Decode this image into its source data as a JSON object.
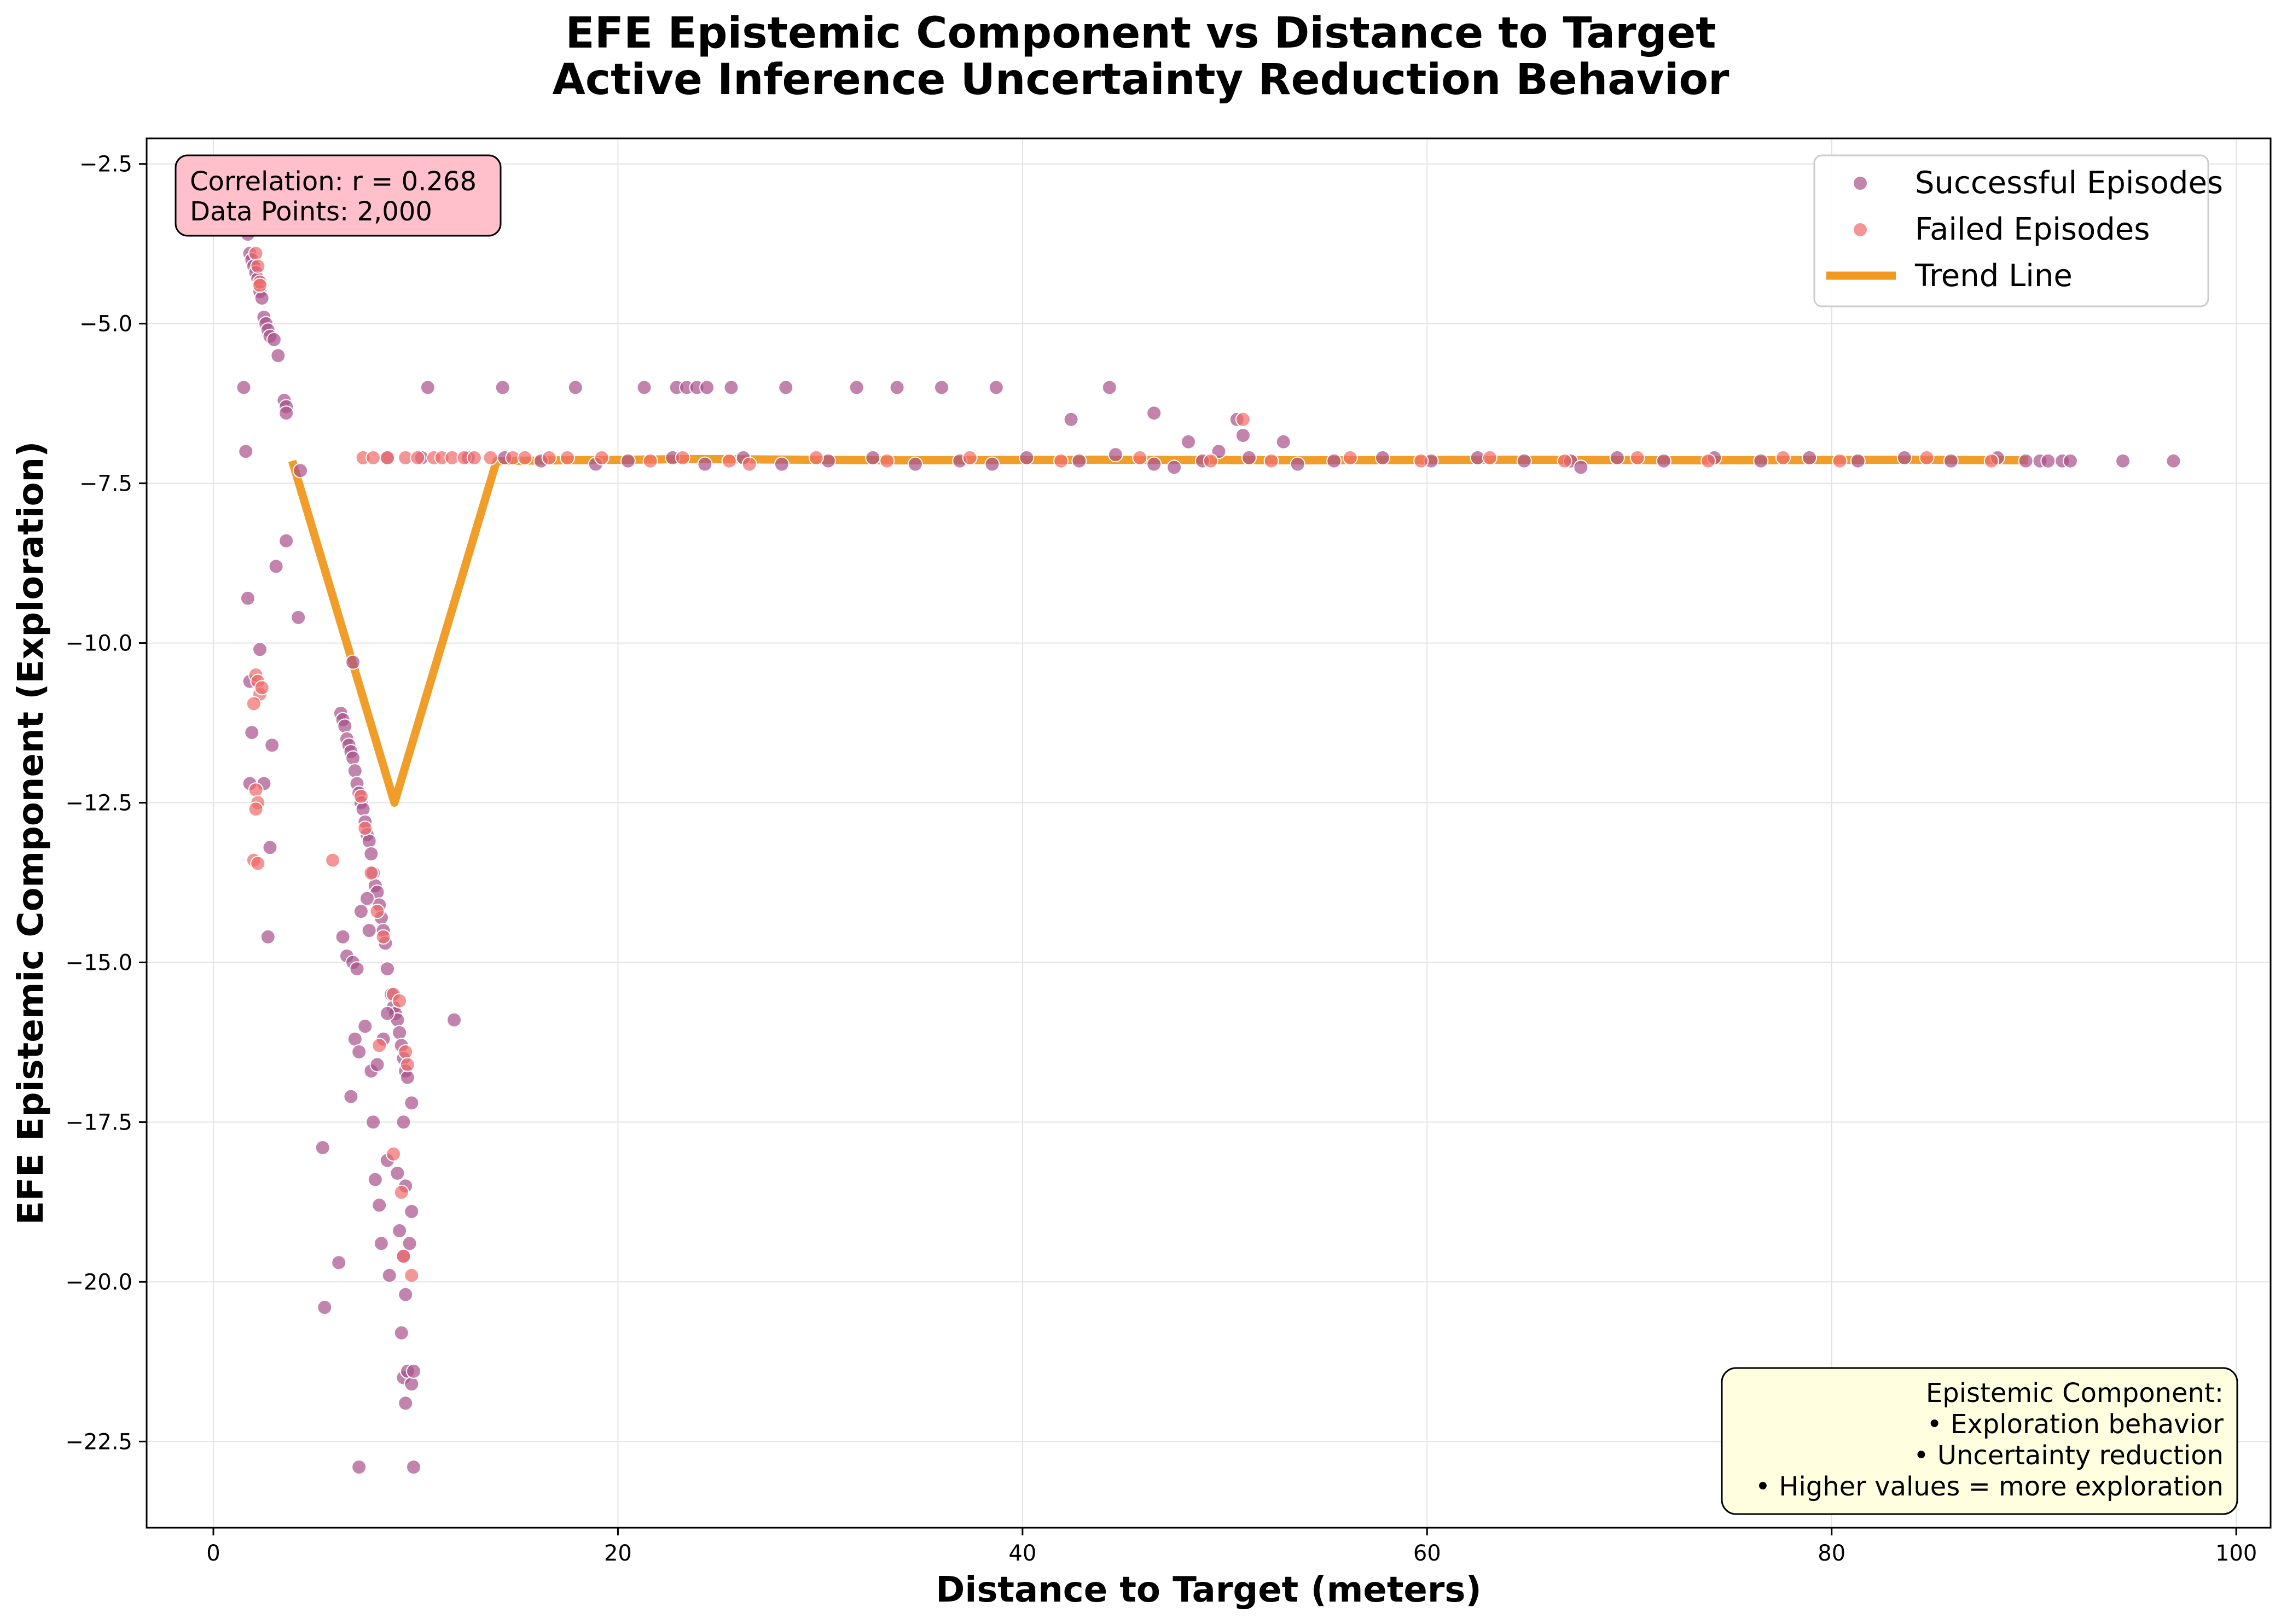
{
  "chart_data": {
    "type": "scatter",
    "title": "EFE Epistemic Component vs Distance to Target",
    "subtitle": "Active Inference Uncertainty Reduction Behavior",
    "xlabel": "Distance to Target (meters)",
    "ylabel": "EFE Epistemic Component (Exploration)",
    "xlim": [
      -3.3,
      101.7
    ],
    "ylim": [
      -23.85,
      -2.1
    ],
    "xticks": [
      0,
      20,
      40,
      60,
      80,
      100
    ],
    "yticks": [
      -2.5,
      -5.0,
      -7.5,
      -10.0,
      -12.5,
      -15.0,
      -17.5,
      -20.0,
      -22.5
    ],
    "xtick_labels": [
      "0",
      "20",
      "40",
      "60",
      "80",
      "100"
    ],
    "ytick_labels": [
      "−2.5",
      "−5.0",
      "−7.5",
      "−10.0",
      "−12.5",
      "−15.0",
      "−17.5",
      "−20.0",
      "−22.5"
    ],
    "grid": true,
    "legend_position": "top-right",
    "colors": {
      "successful": "#a8508a",
      "failed": "#ef6a6a",
      "trend": "#f0981f",
      "correlation_box": "#ffc0cb",
      "info_box": "#ffffe0"
    },
    "series": [
      {
        "name": "Successful Episodes",
        "points": [
          [
            1.6,
            -3.3
          ],
          [
            1.7,
            -3.6
          ],
          [
            1.8,
            -3.9
          ],
          [
            1.9,
            -4.0
          ],
          [
            2.0,
            -4.1
          ],
          [
            2.1,
            -4.2
          ],
          [
            2.2,
            -4.3
          ],
          [
            2.3,
            -4.5
          ],
          [
            2.4,
            -4.6
          ],
          [
            2.5,
            -4.9
          ],
          [
            2.6,
            -5.0
          ],
          [
            2.7,
            -5.1
          ],
          [
            2.8,
            -5.2
          ],
          [
            3.0,
            -5.25
          ],
          [
            3.2,
            -5.5
          ],
          [
            3.5,
            -6.2
          ],
          [
            3.6,
            -6.3
          ],
          [
            3.6,
            -6.4
          ],
          [
            1.5,
            -6.0
          ],
          [
            1.6,
            -7.0
          ],
          [
            1.7,
            -9.3
          ],
          [
            1.8,
            -10.6
          ],
          [
            1.9,
            -11.4
          ],
          [
            1.8,
            -12.2
          ],
          [
            2.3,
            -10.1
          ],
          [
            2.5,
            -12.2
          ],
          [
            2.7,
            -14.6
          ],
          [
            2.8,
            -13.2
          ],
          [
            2.9,
            -11.6
          ],
          [
            3.1,
            -8.8
          ],
          [
            3.6,
            -8.4
          ],
          [
            4.2,
            -9.6
          ],
          [
            4.3,
            -7.3
          ],
          [
            6.3,
            -11.1
          ],
          [
            6.4,
            -11.2
          ],
          [
            6.5,
            -11.3
          ],
          [
            6.6,
            -11.5
          ],
          [
            6.7,
            -11.6
          ],
          [
            6.8,
            -11.7
          ],
          [
            6.9,
            -11.8
          ],
          [
            7.0,
            -12.0
          ],
          [
            7.1,
            -12.2
          ],
          [
            7.2,
            -12.35
          ],
          [
            7.3,
            -12.5
          ],
          [
            7.4,
            -12.6
          ],
          [
            7.5,
            -12.8
          ],
          [
            7.6,
            -13.0
          ],
          [
            7.7,
            -13.1
          ],
          [
            7.8,
            -13.3
          ],
          [
            7.9,
            -13.6
          ],
          [
            8.0,
            -13.8
          ],
          [
            8.1,
            -13.9
          ],
          [
            8.2,
            -14.1
          ],
          [
            8.3,
            -14.3
          ],
          [
            8.4,
            -14.5
          ],
          [
            8.5,
            -14.7
          ],
          [
            8.6,
            -15.1
          ],
          [
            8.8,
            -15.5
          ],
          [
            8.9,
            -15.7
          ],
          [
            9.0,
            -15.8
          ],
          [
            9.1,
            -15.9
          ],
          [
            9.2,
            -16.1
          ],
          [
            9.3,
            -16.3
          ],
          [
            9.4,
            -16.5
          ],
          [
            9.5,
            -16.7
          ],
          [
            9.6,
            -16.8
          ],
          [
            9.8,
            -17.2
          ],
          [
            6.9,
            -10.3
          ],
          [
            6.4,
            -14.6
          ],
          [
            6.6,
            -14.9
          ],
          [
            6.9,
            -15.0
          ],
          [
            7.1,
            -15.1
          ],
          [
            7.3,
            -14.2
          ],
          [
            7.6,
            -14.0
          ],
          [
            7.7,
            -14.5
          ],
          [
            7.0,
            -16.2
          ],
          [
            7.2,
            -16.4
          ],
          [
            7.5,
            -16.0
          ],
          [
            7.8,
            -16.7
          ],
          [
            8.1,
            -16.6
          ],
          [
            8.4,
            -16.2
          ],
          [
            8.6,
            -15.8
          ],
          [
            6.8,
            -17.1
          ],
          [
            7.9,
            -17.5
          ],
          [
            9.4,
            -17.5
          ],
          [
            5.4,
            -17.9
          ],
          [
            8.0,
            -18.4
          ],
          [
            8.2,
            -18.8
          ],
          [
            8.6,
            -18.1
          ],
          [
            9.1,
            -18.3
          ],
          [
            9.5,
            -18.5
          ],
          [
            9.8,
            -18.9
          ],
          [
            8.3,
            -19.4
          ],
          [
            8.7,
            -19.9
          ],
          [
            9.2,
            -19.2
          ],
          [
            9.4,
            -19.6
          ],
          [
            9.7,
            -19.4
          ],
          [
            9.5,
            -20.2
          ],
          [
            6.2,
            -19.7
          ],
          [
            5.5,
            -20.4
          ],
          [
            9.3,
            -20.8
          ],
          [
            9.4,
            -21.5
          ],
          [
            9.6,
            -21.4
          ],
          [
            9.8,
            -21.6
          ],
          [
            9.5,
            -21.9
          ],
          [
            7.2,
            -22.9
          ],
          [
            9.9,
            -22.9
          ],
          [
            11.9,
            -15.9
          ],
          [
            9.9,
            -21.4
          ],
          [
            10.6,
            -6.0
          ],
          [
            14.3,
            -6.0
          ],
          [
            17.9,
            -6.0
          ],
          [
            21.3,
            -6.0
          ],
          [
            22.9,
            -6.0
          ],
          [
            23.4,
            -6.0
          ],
          [
            23.9,
            -6.0
          ],
          [
            24.4,
            -6.0
          ],
          [
            25.6,
            -6.0
          ],
          [
            28.3,
            -6.0
          ],
          [
            31.8,
            -6.0
          ],
          [
            33.8,
            -6.0
          ],
          [
            36.0,
            -6.0
          ],
          [
            38.7,
            -6.0
          ],
          [
            44.3,
            -6.0
          ],
          [
            42.4,
            -6.5
          ],
          [
            46.5,
            -6.4
          ],
          [
            48.2,
            -6.85
          ],
          [
            49.7,
            -7.0
          ],
          [
            50.6,
            -6.5
          ],
          [
            50.9,
            -6.75
          ],
          [
            52.9,
            -6.85
          ],
          [
            8.6,
            -7.1
          ],
          [
            10.3,
            -7.1
          ],
          [
            12.6,
            -7.1
          ],
          [
            14.4,
            -7.1
          ],
          [
            16.2,
            -7.15
          ],
          [
            18.9,
            -7.2
          ],
          [
            20.5,
            -7.15
          ],
          [
            22.7,
            -7.1
          ],
          [
            24.3,
            -7.2
          ],
          [
            26.2,
            -7.1
          ],
          [
            28.1,
            -7.2
          ],
          [
            30.4,
            -7.15
          ],
          [
            32.6,
            -7.1
          ],
          [
            34.7,
            -7.2
          ],
          [
            36.9,
            -7.15
          ],
          [
            38.5,
            -7.2
          ],
          [
            40.2,
            -7.1
          ],
          [
            42.8,
            -7.15
          ],
          [
            44.6,
            -7.05
          ],
          [
            46.5,
            -7.2
          ],
          [
            47.5,
            -7.25
          ],
          [
            48.9,
            -7.15
          ],
          [
            51.2,
            -7.1
          ],
          [
            53.6,
            -7.2
          ],
          [
            55.4,
            -7.15
          ],
          [
            57.8,
            -7.1
          ],
          [
            60.2,
            -7.15
          ],
          [
            62.5,
            -7.1
          ],
          [
            64.8,
            -7.15
          ],
          [
            67.1,
            -7.15
          ],
          [
            67.6,
            -7.25
          ],
          [
            69.4,
            -7.1
          ],
          [
            71.7,
            -7.15
          ],
          [
            74.2,
            -7.1
          ],
          [
            76.5,
            -7.15
          ],
          [
            78.9,
            -7.1
          ],
          [
            81.3,
            -7.15
          ],
          [
            83.6,
            -7.1
          ],
          [
            85.9,
            -7.15
          ],
          [
            88.2,
            -7.1
          ],
          [
            89.6,
            -7.15
          ],
          [
            90.3,
            -7.15
          ],
          [
            90.7,
            -7.15
          ],
          [
            91.4,
            -7.15
          ],
          [
            91.8,
            -7.15
          ],
          [
            94.4,
            -7.15
          ],
          [
            96.9,
            -7.15
          ]
        ]
      },
      {
        "name": "Failed Episodes",
        "points": [
          [
            2.1,
            -3.9
          ],
          [
            2.2,
            -4.1
          ],
          [
            2.3,
            -4.35
          ],
          [
            2.3,
            -4.4
          ],
          [
            2.1,
            -10.5
          ],
          [
            2.2,
            -10.6
          ],
          [
            2.3,
            -10.8
          ],
          [
            2.4,
            -10.7
          ],
          [
            2.0,
            -10.95
          ],
          [
            2.1,
            -12.3
          ],
          [
            2.2,
            -12.5
          ],
          [
            2.1,
            -12.6
          ],
          [
            2.0,
            -13.4
          ],
          [
            2.2,
            -13.45
          ],
          [
            5.9,
            -13.4
          ],
          [
            7.3,
            -12.4
          ],
          [
            7.5,
            -12.9
          ],
          [
            7.8,
            -13.6
          ],
          [
            8.1,
            -14.2
          ],
          [
            8.4,
            -14.6
          ],
          [
            8.2,
            -16.3
          ],
          [
            8.9,
            -15.5
          ],
          [
            9.2,
            -15.6
          ],
          [
            9.5,
            -16.4
          ],
          [
            9.6,
            -16.6
          ],
          [
            8.9,
            -18.0
          ],
          [
            9.3,
            -18.6
          ],
          [
            9.4,
            -19.6
          ],
          [
            9.8,
            -19.9
          ],
          [
            7.4,
            -7.1
          ],
          [
            7.9,
            -7.1
          ],
          [
            8.6,
            -7.1
          ],
          [
            9.5,
            -7.1
          ],
          [
            10.1,
            -7.1
          ],
          [
            10.9,
            -7.1
          ],
          [
            11.3,
            -7.1
          ],
          [
            11.8,
            -7.1
          ],
          [
            12.4,
            -7.1
          ],
          [
            12.9,
            -7.1
          ],
          [
            13.7,
            -7.1
          ],
          [
            14.8,
            -7.1
          ],
          [
            15.4,
            -7.1
          ],
          [
            16.6,
            -7.1
          ],
          [
            17.5,
            -7.1
          ],
          [
            19.2,
            -7.1
          ],
          [
            21.6,
            -7.15
          ],
          [
            23.2,
            -7.1
          ],
          [
            25.5,
            -7.15
          ],
          [
            26.5,
            -7.2
          ],
          [
            29.8,
            -7.1
          ],
          [
            33.3,
            -7.15
          ],
          [
            37.4,
            -7.1
          ],
          [
            41.9,
            -7.15
          ],
          [
            45.8,
            -7.1
          ],
          [
            49.3,
            -7.15
          ],
          [
            50.9,
            -6.5
          ],
          [
            52.3,
            -7.15
          ],
          [
            56.2,
            -7.1
          ],
          [
            59.7,
            -7.15
          ],
          [
            63.1,
            -7.1
          ],
          [
            66.8,
            -7.15
          ],
          [
            70.4,
            -7.1
          ],
          [
            73.9,
            -7.15
          ],
          [
            77.6,
            -7.1
          ],
          [
            80.4,
            -7.15
          ],
          [
            84.7,
            -7.1
          ],
          [
            87.9,
            -7.15
          ]
        ]
      }
    ],
    "trend_line": {
      "name": "Trend Line",
      "points": [
        [
          3.9,
          -7.15
        ],
        [
          8.95,
          -12.5
        ],
        [
          14.0,
          -7.15
        ],
        [
          24.0,
          -7.12
        ],
        [
          34.0,
          -7.14
        ],
        [
          44.0,
          -7.13
        ],
        [
          54.0,
          -7.14
        ],
        [
          64.0,
          -7.13
        ],
        [
          74.0,
          -7.14
        ],
        [
          84.0,
          -7.13
        ],
        [
          89.7,
          -7.14
        ]
      ]
    },
    "annotations": {
      "correlation": [
        "Correlation: r = 0.268",
        "Data Points: 2,000"
      ],
      "info": [
        "Epistemic Component:",
        "• Exploration behavior",
        "• Uncertainty reduction",
        "• Higher values = more exploration"
      ]
    }
  }
}
